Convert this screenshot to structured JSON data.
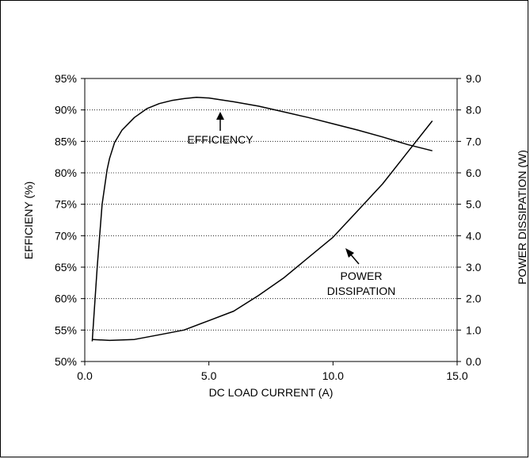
{
  "chart_data": {
    "type": "line",
    "title": "",
    "xlabel": "DC LOAD CURRENT (A)",
    "ylabel_left": "EFFICIENY (%)",
    "ylabel_right": "POWER DISSIPATION (W)",
    "xlim": [
      0,
      15
    ],
    "ylim_left": [
      50,
      95
    ],
    "ylim_right": [
      0,
      9
    ],
    "grid": "horizontal dotted",
    "x_ticks": [
      "0.0",
      "5.0",
      "10.0",
      "15.0"
    ],
    "y_left_ticks": [
      "50%",
      "55%",
      "60%",
      "65%",
      "70%",
      "75%",
      "80%",
      "85%",
      "90%",
      "95%"
    ],
    "y_right_ticks": [
      "0.0",
      "1.0",
      "2.0",
      "3.0",
      "4.0",
      "5.0",
      "6.0",
      "7.0",
      "8.0",
      "9.0"
    ],
    "series": [
      {
        "name": "EFFICIENCY",
        "axis": "left",
        "x": [
          0.3,
          0.5,
          0.7,
          0.9,
          1.0,
          1.2,
          1.5,
          2.0,
          2.5,
          3.0,
          3.5,
          4.0,
          4.5,
          5.0,
          5.5,
          6.0,
          7.0,
          8.0,
          9.0,
          10.0,
          11.0,
          12.0,
          13.0,
          14.0
        ],
        "y": [
          53.2,
          65.0,
          75.0,
          80.5,
          82.3,
          84.8,
          86.8,
          88.8,
          90.2,
          91.0,
          91.5,
          91.8,
          92.0,
          91.9,
          91.6,
          91.3,
          90.6,
          89.7,
          88.8,
          87.8,
          86.8,
          85.7,
          84.5,
          83.5
        ]
      },
      {
        "name": "POWER DISSIPATION",
        "axis": "right",
        "x": [
          0.3,
          1.0,
          2.0,
          3.0,
          4.0,
          5.0,
          6.0,
          7.0,
          8.0,
          9.0,
          10.0,
          11.0,
          12.0,
          13.0,
          14.0
        ],
        "y": [
          0.7,
          0.67,
          0.7,
          0.85,
          1.0,
          1.3,
          1.6,
          2.1,
          2.65,
          3.3,
          3.95,
          4.8,
          5.65,
          6.65,
          7.65
        ]
      }
    ],
    "annotations": [
      {
        "text": "EFFICIENCY",
        "points_to": "EFFICIENCY"
      },
      {
        "text": "POWER",
        "points_to": "POWER DISSIPATION"
      },
      {
        "text": "DISSIPATION",
        "points_to": "POWER DISSIPATION"
      }
    ]
  }
}
